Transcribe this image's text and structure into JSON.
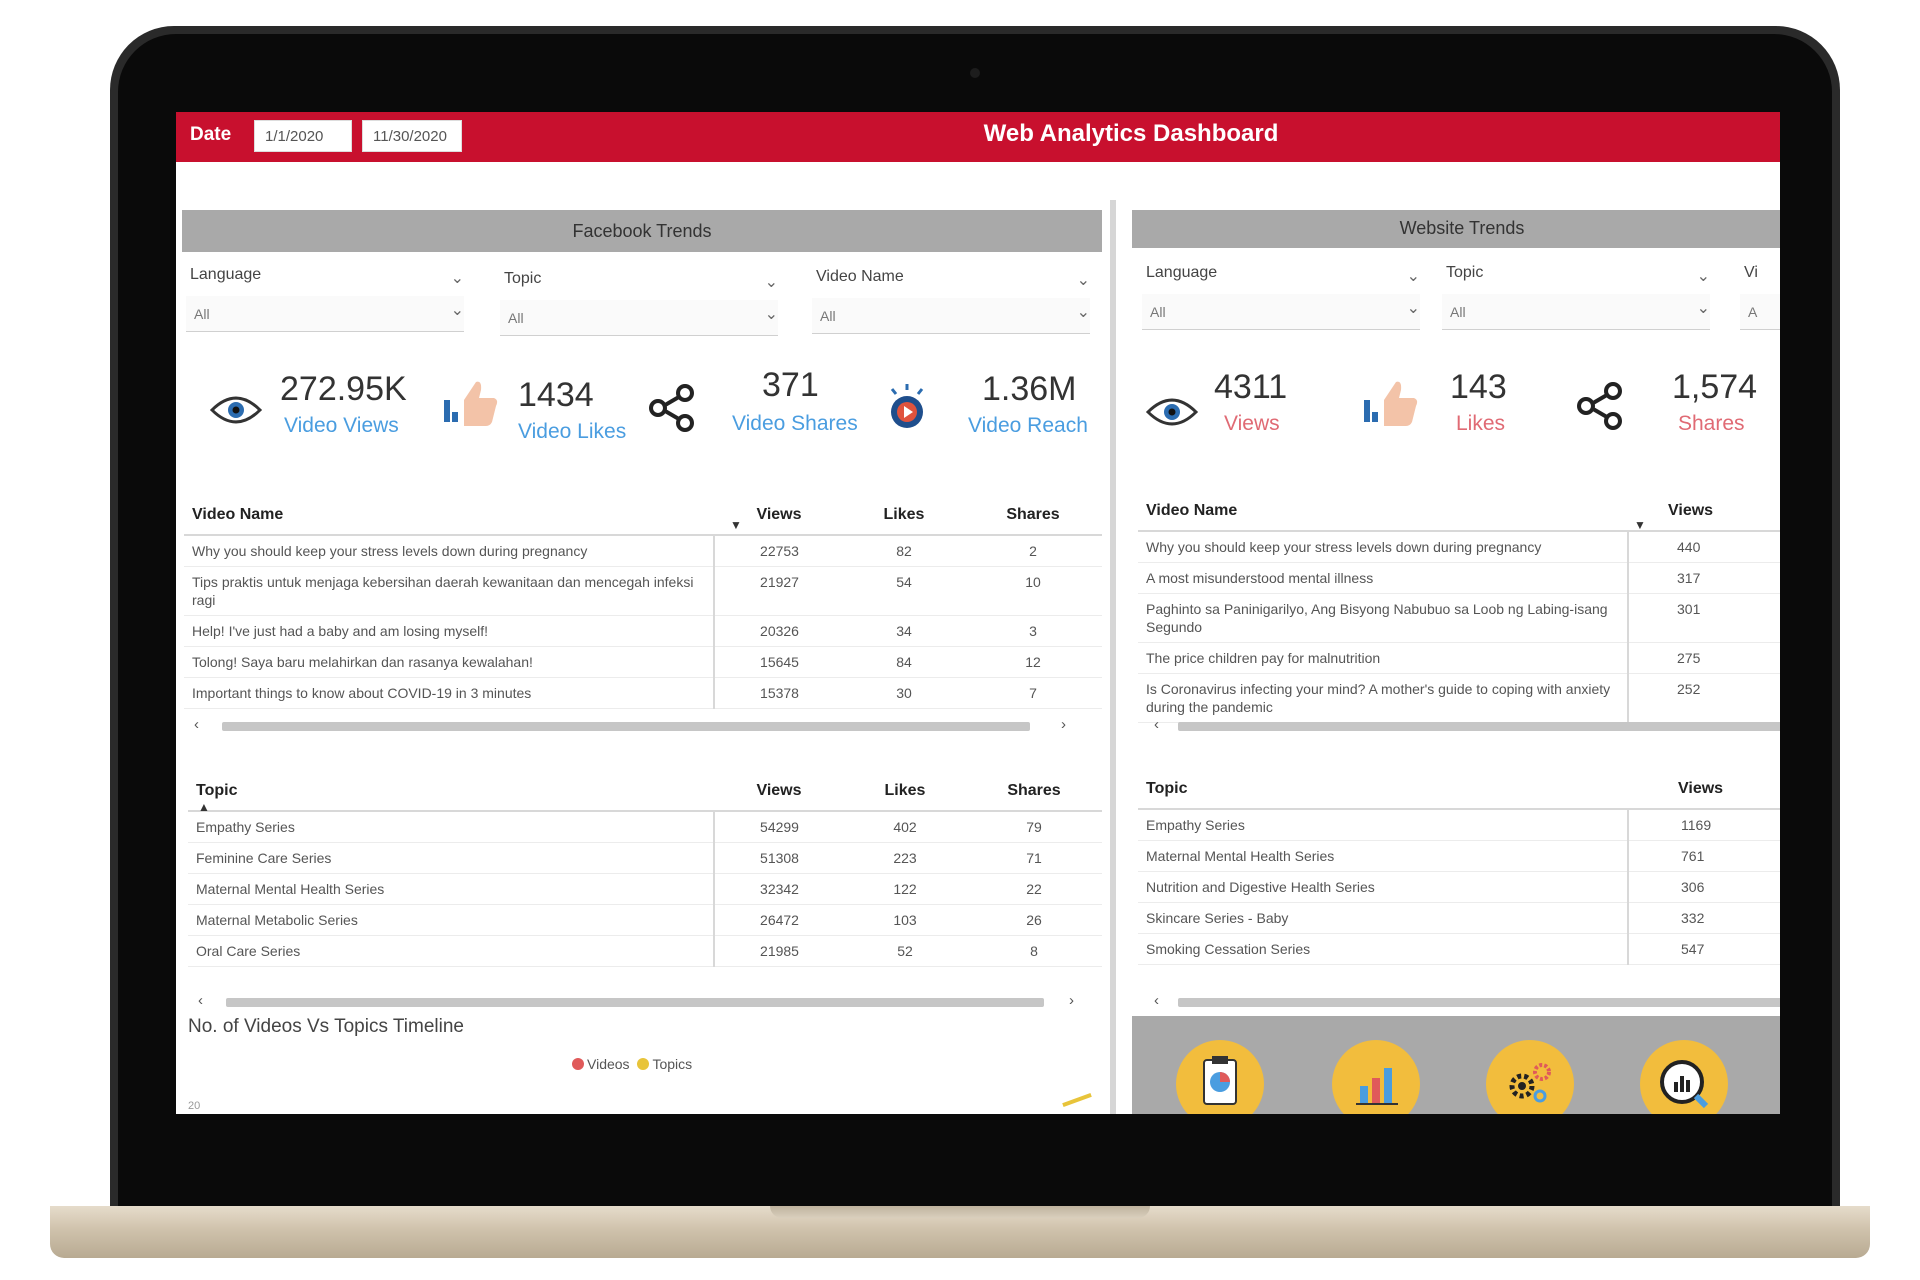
{
  "header": {
    "date_label": "Date",
    "date_start": "1/1/2020",
    "date_end": "11/30/2020",
    "title": "Web Analytics Dashboard"
  },
  "facebook": {
    "panel_title": "Facebook Trends",
    "filters": [
      {
        "label": "Language",
        "value": "All"
      },
      {
        "label": "Topic",
        "value": "All"
      },
      {
        "label": "Video Name",
        "value": "All"
      }
    ],
    "kpis": {
      "views": {
        "value": "272.95K",
        "label": "Video Views",
        "icon": "eye-icon"
      },
      "likes": {
        "value": "1434",
        "label": "Video Likes",
        "icon": "thumbs-up-icon"
      },
      "shares": {
        "value": "371",
        "label": "Video Shares",
        "icon": "share-icon"
      },
      "reach": {
        "value": "1.36M",
        "label": "Video Reach",
        "icon": "play-burst-icon"
      }
    },
    "videos_table": {
      "headers": [
        "Video Name",
        "Views",
        "Likes",
        "Shares"
      ],
      "rows": [
        [
          "Why you should keep your stress levels down during pregnancy",
          "22753",
          "82",
          "2"
        ],
        [
          "Tips praktis untuk menjaga kebersihan daerah kewanitaan dan mencegah infeksi ragi",
          "21927",
          "54",
          "10"
        ],
        [
          "Help! I've just had a baby and am losing myself!",
          "20326",
          "34",
          "3"
        ],
        [
          "Tolong! Saya baru melahirkan dan rasanya kewalahan!",
          "15645",
          "84",
          "12"
        ],
        [
          "Important things to know about COVID-19 in 3 minutes",
          "15378",
          "30",
          "7"
        ]
      ]
    },
    "topics_table": {
      "headers": [
        "Topic",
        "Views",
        "Likes",
        "Shares"
      ],
      "rows": [
        [
          "Empathy Series",
          "54299",
          "402",
          "79"
        ],
        [
          "Feminine Care Series",
          "51308",
          "223",
          "71"
        ],
        [
          "Maternal Mental Health Series",
          "32342",
          "122",
          "22"
        ],
        [
          "Maternal Metabolic Series",
          "26472",
          "103",
          "26"
        ],
        [
          "Oral Care Series",
          "21985",
          "52",
          "8"
        ]
      ]
    },
    "chart": {
      "title": "No. of Videos Vs Topics Timeline",
      "legend": [
        {
          "name": "Videos",
          "color": "#e05a5a"
        },
        {
          "name": "Topics",
          "color": "#e8c43a"
        }
      ],
      "y_tick": "20"
    }
  },
  "website": {
    "panel_title": "Website Trends",
    "filters": [
      {
        "label": "Language",
        "value": "All"
      },
      {
        "label": "Topic",
        "value": "All"
      },
      {
        "label": "Vi",
        "value": "A"
      }
    ],
    "kpis": {
      "views": {
        "value": "4311",
        "label": "Views",
        "icon": "eye-icon"
      },
      "likes": {
        "value": "143",
        "label": "Likes",
        "icon": "thumbs-up-icon"
      },
      "shares": {
        "value": "1,574",
        "label": "Shares",
        "icon": "share-icon"
      }
    },
    "videos_table": {
      "headers": [
        "Video Name",
        "Views"
      ],
      "rows": [
        [
          "Why you should keep your stress levels down during pregnancy",
          "440"
        ],
        [
          "A most misunderstood mental illness",
          "317"
        ],
        [
          "Paghinto sa Paninigarilyo, Ang Bisyong Nabubuo sa Loob ng Labing-isang Segundo",
          "301"
        ],
        [
          "The price children pay for malnutrition",
          "275"
        ],
        [
          "Is Coronavirus infecting your mind? A mother's guide to coping with anxiety during the pandemic",
          "252"
        ]
      ]
    },
    "topics_table": {
      "headers": [
        "Topic",
        "Views"
      ],
      "rows": [
        [
          "Empathy Series",
          "1169"
        ],
        [
          "Maternal Mental Health Series",
          "761"
        ],
        [
          "Nutrition and Digestive Health Series",
          "306"
        ],
        [
          "Skincare Series - Baby",
          "332"
        ],
        [
          "Smoking Cessation Series",
          "547"
        ]
      ]
    },
    "nav_buttons": [
      {
        "icon": "clipboard-pie-chart-icon"
      },
      {
        "icon": "bar-chart-icon"
      },
      {
        "icon": "gears-icon"
      },
      {
        "icon": "magnifier-chart-icon"
      }
    ]
  },
  "colors": {
    "brand_red": "#c8102e",
    "kpi_blue": "#4a9de0",
    "kpi_pink": "#e06a74",
    "nav_yellow": "#f2bd3d"
  }
}
